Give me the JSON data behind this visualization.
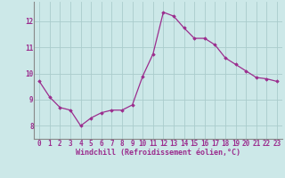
{
  "x": [
    0,
    1,
    2,
    3,
    4,
    5,
    6,
    7,
    8,
    9,
    10,
    11,
    12,
    13,
    14,
    15,
    16,
    17,
    18,
    19,
    20,
    21,
    22,
    23
  ],
  "y": [
    9.7,
    9.1,
    8.7,
    8.6,
    8.0,
    8.3,
    8.5,
    8.6,
    8.6,
    8.8,
    9.9,
    10.75,
    12.35,
    12.2,
    11.75,
    11.35,
    11.35,
    11.1,
    10.6,
    10.35,
    10.1,
    9.85,
    9.8,
    9.7
  ],
  "line_color": "#9b2d8e",
  "marker": "D",
  "marker_size": 1.8,
  "bg_color": "#cce8e8",
  "grid_color": "#aacccc",
  "xlabel": "Windchill (Refroidissement éolien,°C)",
  "xlabel_color": "#9b2d8e",
  "xlabel_fontsize": 6.0,
  "tick_color": "#9b2d8e",
  "tick_fontsize": 5.5,
  "ylim": [
    7.5,
    12.75
  ],
  "yticks": [
    8,
    9,
    10,
    11,
    12
  ],
  "xlim": [
    -0.5,
    23.5
  ],
  "xticks": [
    0,
    1,
    2,
    3,
    4,
    5,
    6,
    7,
    8,
    9,
    10,
    11,
    12,
    13,
    14,
    15,
    16,
    17,
    18,
    19,
    20,
    21,
    22,
    23
  ],
  "line_width": 0.9
}
